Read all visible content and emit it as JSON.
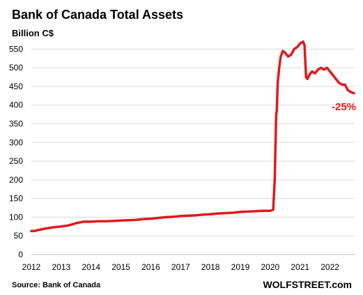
{
  "chart_data": {
    "type": "line",
    "title": "Bank of Canada Total Assets",
    "subtitle": "Billion C$",
    "xlabel": "",
    "ylabel": "",
    "ylim": [
      0,
      575
    ],
    "xlim": [
      2012,
      2022.85
    ],
    "y_ticks": [
      "0",
      "50",
      "100",
      "150",
      "200",
      "250",
      "300",
      "350",
      "400",
      "450",
      "500",
      "550"
    ],
    "x_ticks": [
      "2012",
      "2013",
      "2014",
      "2015",
      "2016",
      "2017",
      "2018",
      "2019",
      "2020",
      "2021",
      "2022"
    ],
    "grid": "horizontal",
    "line_color": "#e0191e",
    "series": [
      {
        "x": [
          2012.0,
          2012.1,
          2012.25,
          2012.5,
          2012.75,
          2013.0,
          2013.25,
          2013.5,
          2013.75,
          2014.0,
          2014.25,
          2014.5,
          2014.75,
          2015.0,
          2015.25,
          2015.5,
          2015.75,
          2016.0,
          2016.25,
          2016.5,
          2016.75,
          2017.0,
          2017.25,
          2017.5,
          2017.75,
          2018.0,
          2018.25,
          2018.5,
          2018.75,
          2019.0,
          2019.25,
          2019.5,
          2019.75,
          2020.0,
          2020.1,
          2020.15,
          2020.2,
          2020.22,
          2020.25,
          2020.3,
          2020.35,
          2020.42,
          2020.5,
          2020.6,
          2020.7,
          2020.8,
          2020.9,
          2021.0,
          2021.1,
          2021.15,
          2021.2,
          2021.25,
          2021.3,
          2021.4,
          2021.5,
          2021.6,
          2021.7,
          2021.8,
          2021.9,
          2022.0,
          2022.1,
          2022.2,
          2022.3,
          2022.4,
          2022.5,
          2022.6,
          2022.7,
          2022.8
        ],
        "values": [
          63,
          63,
          66,
          70,
          73,
          75,
          78,
          84,
          88,
          88,
          89,
          89,
          90,
          91,
          92,
          93,
          95,
          96,
          98,
          100,
          101,
          103,
          104,
          105,
          107,
          108,
          110,
          111,
          112,
          114,
          115,
          116,
          117,
          117,
          120,
          200,
          375,
          385,
          460,
          500,
          530,
          545,
          540,
          530,
          535,
          550,
          555,
          565,
          570,
          560,
          475,
          470,
          480,
          490,
          485,
          495,
          500,
          495,
          500,
          490,
          480,
          470,
          460,
          455,
          455,
          440,
          435,
          432
        ]
      }
    ],
    "annotations": [
      {
        "text": "-25%",
        "color": "#e0191e"
      }
    ]
  },
  "footer": {
    "source": "Source: Bank of Canada",
    "brand": "WOLFSTREET.com"
  }
}
